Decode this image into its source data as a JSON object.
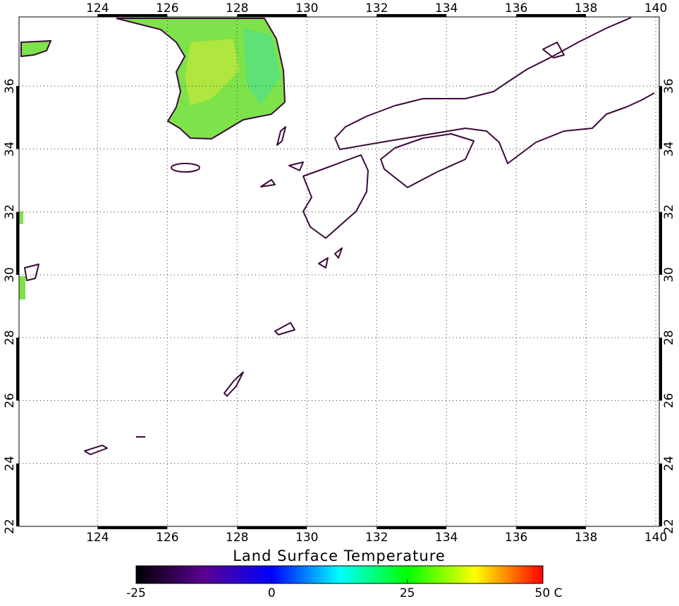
{
  "map": {
    "title": "Land Surface Temperature",
    "xlim": [
      121.75,
      140.1
    ],
    "ylim": [
      22,
      38.2
    ],
    "xticks": [
      124,
      126,
      128,
      130,
      132,
      134,
      136,
      138,
      140
    ],
    "yticks": [
      22,
      24,
      26,
      28,
      30,
      32,
      34,
      36
    ],
    "grid": true,
    "colorbar": {
      "lim": [
        -25,
        50
      ],
      "ticks": [
        -25,
        0,
        25,
        {
          "value": 50,
          "label": "50 C"
        }
      ],
      "colors": [
        "#000000",
        "#5a0090",
        "#0000ff",
        "#00ffff",
        "#00ff00",
        "#ffff00",
        "#ff0000"
      ]
    }
  }
}
